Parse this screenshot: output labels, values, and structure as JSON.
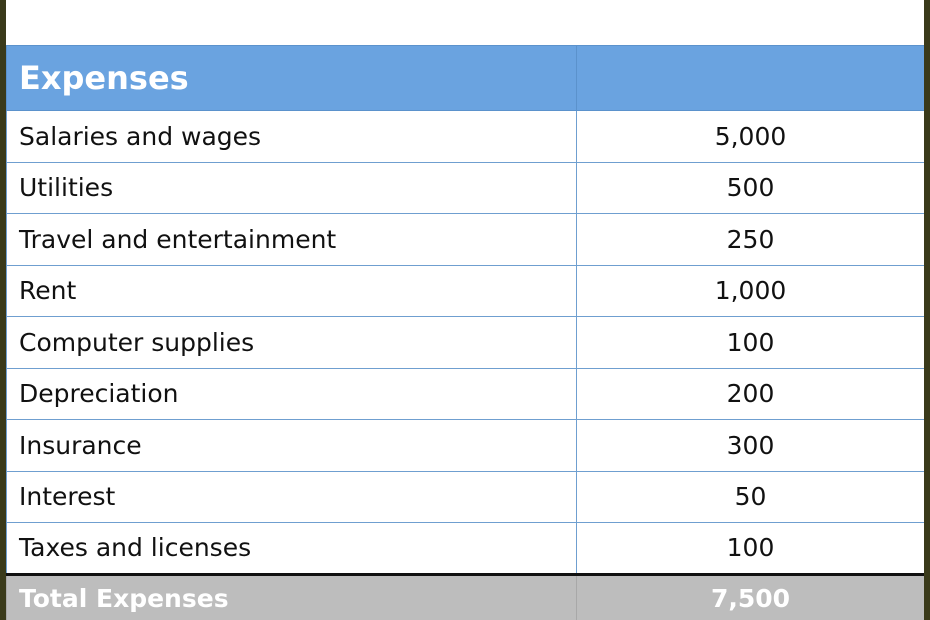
{
  "header": {
    "title": "Expenses",
    "value": ""
  },
  "rows": [
    {
      "label": "Salaries and wages",
      "amount": "5,000"
    },
    {
      "label": "Utilities",
      "amount": "500"
    },
    {
      "label": "Travel and entertainment",
      "amount": "250"
    },
    {
      "label": "Rent",
      "amount": "1,000"
    },
    {
      "label": "Computer supplies",
      "amount": "100"
    },
    {
      "label": "Depreciation",
      "amount": "200"
    },
    {
      "label": "Insurance",
      "amount": "300"
    },
    {
      "label": "Interest",
      "amount": "50"
    },
    {
      "label": "Taxes and licenses",
      "amount": "100"
    }
  ],
  "total": {
    "label": "Total Expenses",
    "amount": "7,500"
  },
  "colors": {
    "header_bg": "#6aa3e0",
    "grid_line": "#6f9fd0",
    "total_bg": "#bdbdbd",
    "frame": "#3a3a1a"
  }
}
